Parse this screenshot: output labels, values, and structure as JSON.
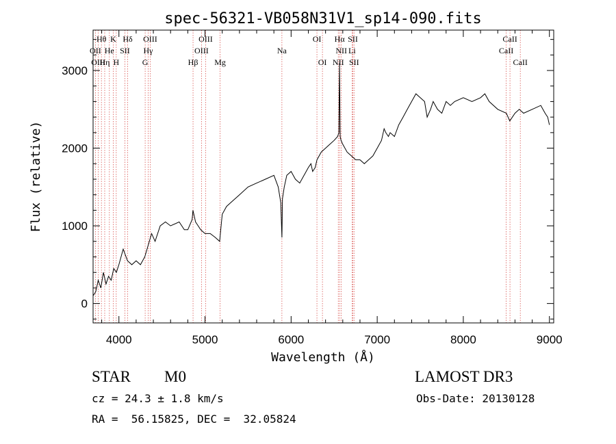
{
  "chart_data": {
    "type": "line",
    "title": "spec-56321-VB058N31V1_sp14-090.fits",
    "xlabel": "Wavelength (Å)",
    "ylabel": "Flux (relative)",
    "xlim": [
      3700,
      9050
    ],
    "ylim": [
      -250,
      3520
    ],
    "xticks": [
      4000,
      5000,
      6000,
      7000,
      8000,
      9000
    ],
    "yticks": [
      0,
      1000,
      2000,
      3000
    ],
    "grid": false,
    "legend": "none",
    "series": [
      {
        "name": "spectrum",
        "x": [
          3700,
          3730,
          3760,
          3790,
          3820,
          3850,
          3880,
          3910,
          3940,
          3970,
          4000,
          4050,
          4100,
          4150,
          4200,
          4250,
          4300,
          4340,
          4380,
          4420,
          4480,
          4540,
          4600,
          4700,
          4760,
          4800,
          4850,
          4860,
          4890,
          4920,
          4950,
          5000,
          5060,
          5120,
          5170,
          5200,
          5250,
          5300,
          5400,
          5500,
          5600,
          5700,
          5800,
          5850,
          5880,
          5893,
          5900,
          5920,
          5950,
          6000,
          6050,
          6100,
          6150,
          6200,
          6230,
          6250,
          6280,
          6300,
          6350,
          6400,
          6450,
          6500,
          6540,
          6555,
          6563,
          6570,
          6580,
          6600,
          6650,
          6700,
          6750,
          6800,
          6850,
          6900,
          6950,
          7000,
          7050,
          7080,
          7100,
          7130,
          7150,
          7200,
          7250,
          7300,
          7350,
          7400,
          7450,
          7500,
          7550,
          7580,
          7620,
          7650,
          7700,
          7750,
          7800,
          7850,
          7900,
          8000,
          8100,
          8200,
          8250,
          8300,
          8400,
          8500,
          8540,
          8600,
          8650,
          8700,
          8800,
          8900,
          8950,
          8980,
          9000
        ],
        "y": [
          100,
          150,
          300,
          200,
          400,
          250,
          350,
          300,
          450,
          400,
          500,
          700,
          550,
          500,
          550,
          500,
          600,
          750,
          900,
          800,
          1000,
          1050,
          1000,
          1050,
          950,
          950,
          1080,
          1200,
          1050,
          1000,
          950,
          900,
          900,
          850,
          800,
          1150,
          1250,
          1300,
          1400,
          1500,
          1550,
          1600,
          1650,
          1500,
          1300,
          850,
          1350,
          1500,
          1650,
          1700,
          1600,
          1550,
          1650,
          1750,
          1800,
          1700,
          1750,
          1850,
          1950,
          2000,
          2050,
          2100,
          2150,
          2200,
          3100,
          2150,
          2100,
          2050,
          1950,
          1900,
          1850,
          1850,
          1800,
          1850,
          1900,
          2000,
          2100,
          2250,
          2200,
          2150,
          2200,
          2150,
          2300,
          2400,
          2500,
          2600,
          2700,
          2650,
          2600,
          2400,
          2500,
          2600,
          2500,
          2450,
          2600,
          2550,
          2600,
          2650,
          2600,
          2650,
          2700,
          2600,
          2500,
          2450,
          2350,
          2450,
          2500,
          2450,
          2500,
          2550,
          2450,
          2400,
          2300
        ]
      }
    ],
    "lines": [
      {
        "label": "Hθ",
        "wl": 3797,
        "row": 1
      },
      {
        "label": "OII",
        "wl": 3727,
        "row": 2
      },
      {
        "label": "OIII",
        "wl": 3760,
        "row": 3
      },
      {
        "label": "He",
        "wl": 3889,
        "row": 2
      },
      {
        "label": "Hη",
        "wl": 3835,
        "row": 3
      },
      {
        "label": "K",
        "wl": 3934,
        "row": 1
      },
      {
        "label": "H",
        "wl": 3969,
        "row": 3
      },
      {
        "label": "SII",
        "wl": 4069,
        "row": 2
      },
      {
        "label": "Hδ",
        "wl": 4102,
        "row": 1
      },
      {
        "label": "OIII",
        "wl": 4363,
        "row": 1
      },
      {
        "label": "Hγ",
        "wl": 4340,
        "row": 2
      },
      {
        "label": "G",
        "wl": 4305,
        "row": 3
      },
      {
        "label": "Hβ",
        "wl": 4861,
        "row": 3
      },
      {
        "label": "OIII",
        "wl": 5007,
        "row": 1
      },
      {
        "label": "OIII",
        "wl": 4959,
        "row": 2
      },
      {
        "label": "Mg",
        "wl": 5175,
        "row": 3
      },
      {
        "label": "Na",
        "wl": 5893,
        "row": 2
      },
      {
        "label": "OI",
        "wl": 6300,
        "row": 1
      },
      {
        "label": "OI",
        "wl": 6364,
        "row": 3
      },
      {
        "label": "Hα",
        "wl": 6563,
        "row": 1
      },
      {
        "label": "NII",
        "wl": 6583,
        "row": 2
      },
      {
        "label": "NII",
        "wl": 6548,
        "row": 3
      },
      {
        "label": "SII",
        "wl": 6717,
        "row": 1
      },
      {
        "label": "Li",
        "wl": 6708,
        "row": 2
      },
      {
        "label": "SII",
        "wl": 6731,
        "row": 3
      },
      {
        "label": "CaII",
        "wl": 8542,
        "row": 1
      },
      {
        "label": "CaII",
        "wl": 8498,
        "row": 2
      },
      {
        "label": "CaII",
        "wl": 8662,
        "row": 3
      }
    ]
  },
  "info": {
    "obj_class": "STAR",
    "subclass": "M0",
    "survey": "LAMOST DR3",
    "cz": "cz = 24.3 ± 1.8 km/s",
    "obs_date": "Obs-Date: 20130128",
    "coords": "RA =  56.15825, DEC =  32.05824"
  },
  "colors": {
    "line_marker": "#d9534f",
    "spectrum": "#000000"
  }
}
